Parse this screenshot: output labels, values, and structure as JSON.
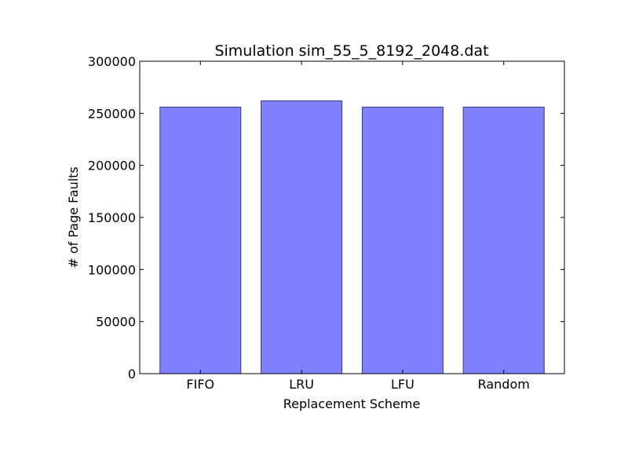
{
  "chart_data": {
    "type": "bar",
    "title": "Simulation sim_55_5_8192_2048.dat",
    "xlabel": "Replacement Scheme",
    "ylabel": "# of Page Faults",
    "categories": [
      "FIFO",
      "LRU",
      "LFU",
      "Random"
    ],
    "values": [
      256000,
      262000,
      256000,
      256000
    ],
    "ylim": [
      0,
      300000
    ],
    "yticks": [
      0,
      50000,
      100000,
      150000,
      200000,
      250000,
      300000
    ],
    "ytick_labels": [
      "0",
      "50000",
      "100000",
      "150000",
      "200000",
      "250000",
      "300000"
    ],
    "grid": false,
    "legend": "none",
    "bar_color": "#8080ff",
    "bar_edge_color": "#3a3a7a"
  }
}
